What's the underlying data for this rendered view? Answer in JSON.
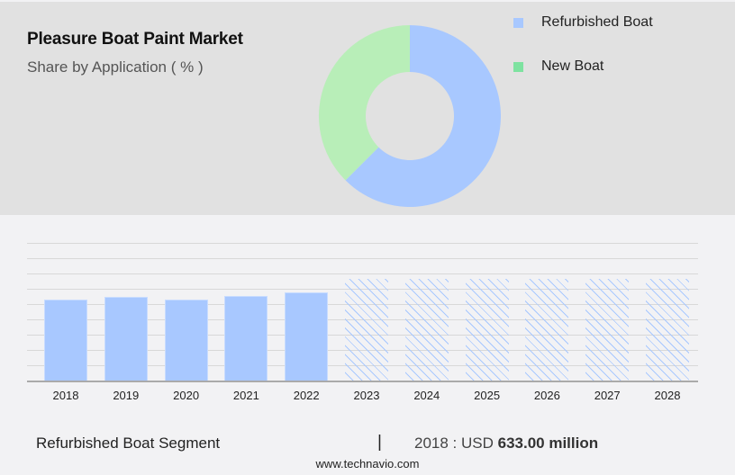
{
  "header": {
    "title": "Pleasure Boat Paint Market",
    "subtitle": "Share by Application ( % )"
  },
  "legend": [
    {
      "label": "Refurbished Boat",
      "color": "#a8c8ff"
    },
    {
      "label": "New Boat",
      "color": "#7ee2a0"
    }
  ],
  "footer": {
    "segment": "Refurbished Boat Segment",
    "separator": "|",
    "year_prefix": "2018 : USD ",
    "value": "633.00 million",
    "url": "www.technavio.com"
  },
  "chart_data": [
    {
      "type": "pie",
      "subtype": "donut",
      "title": "Pleasure Boat Paint Market",
      "subtitle": "Share by Application ( % )",
      "categories": [
        "Refurbished Boat",
        "New Boat"
      ],
      "values": [
        62.5,
        37.5
      ],
      "colors": [
        "#a8c8ff",
        "#b8eeb8"
      ],
      "legend_position": "right"
    },
    {
      "type": "bar",
      "title": "Refurbished Boat Segment",
      "categories": [
        "2018",
        "2019",
        "2020",
        "2021",
        "2022",
        "2023",
        "2024",
        "2025",
        "2026",
        "2027",
        "2028"
      ],
      "values": [
        633,
        660,
        635,
        665,
        690,
        800,
        800,
        800,
        800,
        800,
        800
      ],
      "forecast": [
        false,
        false,
        false,
        false,
        false,
        true,
        true,
        true,
        true,
        true,
        true
      ],
      "annotation": "2018 : USD 633.00 million",
      "xlabel": "",
      "ylabel": "",
      "ylim": [
        0,
        1080
      ],
      "grid": true,
      "y_ticks_visible": false,
      "color": "#a8c8ff"
    }
  ]
}
